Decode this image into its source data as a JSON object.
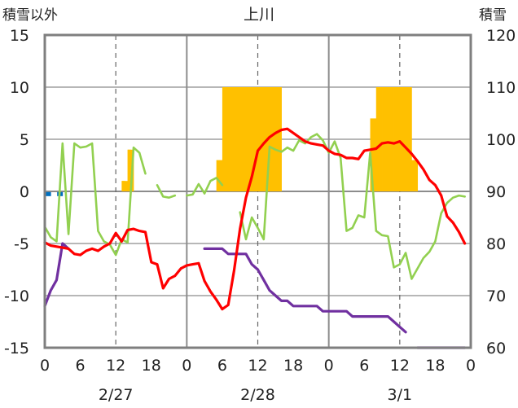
{
  "chart_data": {
    "type": "line",
    "title": "上川",
    "left_axis_label": "積雪以外",
    "right_axis_label": "積雪",
    "y_left": {
      "min": -15,
      "max": 15,
      "ticks": [
        15,
        10,
        5,
        0,
        -5,
        -10,
        -15
      ]
    },
    "y_right": {
      "min": 60,
      "max": 120,
      "ticks": [
        120,
        110,
        100,
        90,
        80,
        70,
        60
      ]
    },
    "x_hours": {
      "min": 0,
      "max": 72
    },
    "x_tick_labels": [
      {
        "h": 0,
        "label": "0"
      },
      {
        "h": 6,
        "label": "6"
      },
      {
        "h": 12,
        "label": "12"
      },
      {
        "h": 18,
        "label": "18"
      },
      {
        "h": 24,
        "label": "0"
      },
      {
        "h": 30,
        "label": "6"
      },
      {
        "h": 36,
        "label": "12"
      },
      {
        "h": 42,
        "label": "18"
      },
      {
        "h": 48,
        "label": "0"
      },
      {
        "h": 54,
        "label": "6"
      },
      {
        "h": 60,
        "label": "12"
      },
      {
        "h": 66,
        "label": "18"
      },
      {
        "h": 72,
        "label": "0"
      }
    ],
    "date_labels": [
      {
        "h": 12,
        "label": "2/27"
      },
      {
        "h": 36,
        "label": "2/28"
      },
      {
        "h": 60,
        "label": "3/1"
      }
    ],
    "day_dividers": [
      24,
      48
    ],
    "dashed_grid_hours": [
      12,
      36,
      60
    ],
    "grid_y": [
      10,
      5,
      0,
      -5,
      -10
    ],
    "colors": {
      "precipitation": "#ffc000",
      "snow_depth": "#7030a0",
      "temperature": "#ff0000",
      "wind": "#92d050",
      "blue": "#0070c0"
    },
    "precipitation_bars": [
      [
        13.5,
        1
      ],
      [
        14,
        1
      ],
      [
        14.5,
        4
      ],
      [
        15,
        4
      ],
      [
        30,
        3
      ],
      [
        31,
        10
      ],
      [
        32,
        10
      ],
      [
        33,
        10
      ],
      [
        34,
        10
      ],
      [
        35,
        10
      ],
      [
        36,
        10
      ],
      [
        37,
        10
      ],
      [
        38,
        10
      ],
      [
        39,
        10
      ],
      [
        40,
        10
      ],
      [
        56,
        7
      ],
      [
        57,
        10
      ],
      [
        58,
        10
      ],
      [
        59,
        10
      ],
      [
        60,
        10
      ],
      [
        61,
        10
      ],
      [
        62,
        10
      ],
      [
        63,
        3
      ]
    ],
    "blue_marks": [
      [
        0.5,
        -0.3
      ],
      [
        2.5,
        -0.3
      ]
    ],
    "temperature_series": [
      [
        [
          0,
          -4.9
        ],
        [
          1,
          -5.2
        ],
        [
          2,
          -5.3
        ],
        [
          3,
          -5.4
        ],
        [
          4,
          -5.5
        ],
        [
          5,
          -6.0
        ],
        [
          6,
          -6.1
        ],
        [
          7,
          -5.7
        ],
        [
          8,
          -5.5
        ],
        [
          9,
          -5.7
        ],
        [
          10,
          -5.3
        ],
        [
          11,
          -5.0
        ],
        [
          12,
          -4.0
        ],
        [
          13,
          -4.8
        ],
        [
          14,
          -3.7
        ],
        [
          15,
          -3.6
        ],
        [
          16,
          -3.8
        ],
        [
          17,
          -3.9
        ],
        [
          18,
          -6.8
        ],
        [
          19,
          -7.0
        ],
        [
          20,
          -9.3
        ],
        [
          21,
          -8.4
        ],
        [
          22,
          -8.1
        ],
        [
          23,
          -7.4
        ],
        [
          24,
          -7.1
        ],
        [
          25,
          -7.0
        ],
        [
          26,
          -6.9
        ],
        [
          27,
          -8.6
        ],
        [
          28,
          -9.6
        ],
        [
          29,
          -10.4
        ],
        [
          30,
          -11.3
        ],
        [
          31,
          -10.9
        ],
        [
          32,
          -7.6
        ],
        [
          33,
          -3.6
        ],
        [
          34,
          -0.6
        ],
        [
          35,
          1.4
        ],
        [
          36,
          3.9
        ],
        [
          37,
          4.6
        ],
        [
          38,
          5.2
        ],
        [
          39,
          5.6
        ],
        [
          40,
          5.9
        ],
        [
          41,
          6.0
        ],
        [
          42,
          5.6
        ],
        [
          43,
          5.2
        ],
        [
          44,
          4.8
        ],
        [
          45,
          4.6
        ],
        [
          46,
          4.5
        ],
        [
          47,
          4.4
        ],
        [
          48,
          3.9
        ],
        [
          49,
          3.6
        ],
        [
          50,
          3.5
        ],
        [
          51,
          3.2
        ],
        [
          52,
          3.2
        ],
        [
          53,
          3.1
        ],
        [
          54,
          3.9
        ],
        [
          55,
          4.0
        ],
        [
          56,
          4.1
        ],
        [
          57,
          4.6
        ],
        [
          58,
          4.7
        ],
        [
          59,
          4.6
        ],
        [
          60,
          4.8
        ],
        [
          61,
          4.2
        ],
        [
          62,
          3.6
        ],
        [
          63,
          2.9
        ],
        [
          64,
          2.1
        ],
        [
          65,
          1.1
        ],
        [
          66,
          0.6
        ],
        [
          67,
          -0.4
        ],
        [
          68,
          -2.4
        ],
        [
          69,
          -3.0
        ],
        [
          70,
          -3.9
        ],
        [
          71,
          -5.0
        ]
      ]
    ],
    "wind_series": [
      [
        [
          0,
          -3.4
        ],
        [
          1,
          -4.4
        ],
        [
          2,
          -4.8
        ],
        [
          3,
          4.6
        ],
        [
          4,
          -4.1
        ],
        [
          5,
          4.6
        ],
        [
          6,
          4.2
        ],
        [
          7,
          4.3
        ],
        [
          8,
          4.6
        ],
        [
          9,
          -3.8
        ],
        [
          10,
          -4.8
        ],
        [
          11,
          -5.1
        ],
        [
          12,
          -6.1
        ],
        [
          13,
          -4.6
        ],
        [
          14,
          -4.9
        ],
        [
          15,
          4.2
        ],
        [
          16,
          3.7
        ],
        [
          17,
          1.7
        ]
      ],
      [
        [
          19,
          0.6
        ],
        [
          20,
          -0.5
        ],
        [
          21,
          -0.6
        ],
        [
          22,
          -0.4
        ]
      ],
      [
        [
          24,
          -0.4
        ],
        [
          25,
          -0.3
        ],
        [
          26,
          0.7
        ],
        [
          27,
          -0.2
        ],
        [
          28,
          1.0
        ],
        [
          29,
          1.3
        ],
        [
          30,
          0.6
        ]
      ],
      [
        [
          33,
          -2.0
        ],
        [
          34,
          -4.6
        ],
        [
          35,
          -2.5
        ],
        [
          36,
          -3.5
        ],
        [
          37,
          -4.6
        ],
        [
          38,
          4.3
        ],
        [
          39,
          4.0
        ],
        [
          40,
          3.8
        ],
        [
          41,
          4.2
        ],
        [
          42,
          3.9
        ],
        [
          43,
          4.9
        ],
        [
          44,
          4.6
        ],
        [
          45,
          5.2
        ],
        [
          46,
          5.5
        ],
        [
          47,
          4.9
        ],
        [
          48,
          3.7
        ],
        [
          49,
          4.8
        ],
        [
          50,
          3.2
        ],
        [
          51,
          -3.8
        ],
        [
          52,
          -3.5
        ],
        [
          53,
          -2.3
        ],
        [
          54,
          -2.5
        ],
        [
          55,
          3.7
        ],
        [
          56,
          -3.8
        ],
        [
          57,
          -4.2
        ],
        [
          58,
          -4.3
        ],
        [
          59,
          -7.3
        ],
        [
          60,
          -7.0
        ],
        [
          61,
          -5.9
        ],
        [
          62,
          -8.4
        ],
        [
          63,
          -7.4
        ],
        [
          64,
          -6.4
        ],
        [
          65,
          -5.8
        ],
        [
          66,
          -4.8
        ],
        [
          67,
          -2.1
        ],
        [
          68,
          -1.1
        ],
        [
          69,
          -0.6
        ],
        [
          70,
          -0.4
        ],
        [
          71,
          -0.5
        ]
      ]
    ],
    "snow_series": [
      [
        [
          0,
          68
        ],
        [
          1,
          71
        ],
        [
          2,
          73
        ],
        [
          3,
          80
        ],
        [
          4,
          79
        ]
      ],
      [
        [
          27,
          79
        ],
        [
          28,
          79
        ],
        [
          29,
          79
        ],
        [
          30,
          79
        ],
        [
          31,
          78
        ],
        [
          32,
          78
        ],
        [
          33,
          78
        ],
        [
          34,
          78
        ],
        [
          35,
          76
        ],
        [
          36,
          75
        ],
        [
          37,
          73
        ],
        [
          38,
          71
        ],
        [
          39,
          70
        ],
        [
          40,
          69
        ],
        [
          41,
          69
        ],
        [
          42,
          68
        ],
        [
          43,
          68
        ],
        [
          44,
          68
        ],
        [
          45,
          68
        ],
        [
          46,
          68
        ],
        [
          47,
          67
        ],
        [
          48,
          67
        ],
        [
          49,
          67
        ],
        [
          50,
          67
        ],
        [
          51,
          67
        ],
        [
          52,
          66
        ],
        [
          53,
          66
        ],
        [
          54,
          66
        ],
        [
          55,
          66
        ],
        [
          56,
          66
        ],
        [
          57,
          66
        ],
        [
          58,
          66
        ],
        [
          59,
          65
        ],
        [
          60,
          64
        ],
        [
          61,
          63
        ]
      ],
      [
        [
          63,
          60
        ],
        [
          64,
          60
        ],
        [
          65,
          60
        ],
        [
          66,
          60
        ],
        [
          67,
          60
        ],
        [
          68,
          60
        ],
        [
          69,
          60
        ],
        [
          70,
          60
        ],
        [
          71,
          60
        ]
      ]
    ]
  }
}
